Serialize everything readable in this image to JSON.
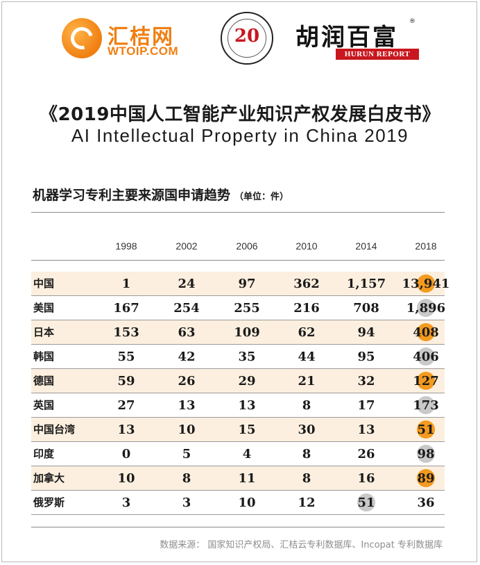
{
  "logos": {
    "wtoip_cn": "汇桔网",
    "wtoip_en": "WTOIP.COM",
    "seal_mark": "20",
    "hurun_cn": "胡润百富",
    "hurun_reg": "®",
    "hurun_en": "HURUN REPORT"
  },
  "title_cn": "《2019中国人工智能产业知识产权发展白皮书》",
  "title_en": "AI Intellectual Property in China 2019",
  "chart_data": {
    "type": "table",
    "title": "机器学习专利主要来源国申请趋势",
    "unit": "（单位：件）",
    "columns": [
      "1998",
      "2002",
      "2006",
      "2010",
      "2014",
      "2018"
    ],
    "rows": [
      {
        "label": "中国",
        "values": [
          "1",
          "24",
          "97",
          "362",
          "1,157",
          "13,941"
        ],
        "highlight": {
          "col": 5,
          "color": "orange"
        }
      },
      {
        "label": "美国",
        "values": [
          "167",
          "254",
          "255",
          "216",
          "708",
          "1,896"
        ],
        "highlight": {
          "col": 5,
          "color": "gray"
        }
      },
      {
        "label": "日本",
        "values": [
          "153",
          "63",
          "109",
          "62",
          "94",
          "408"
        ],
        "highlight": {
          "col": 5,
          "color": "orange"
        }
      },
      {
        "label": "韩国",
        "values": [
          "55",
          "42",
          "35",
          "44",
          "95",
          "406"
        ],
        "highlight": {
          "col": 5,
          "color": "gray"
        }
      },
      {
        "label": "德国",
        "values": [
          "59",
          "26",
          "29",
          "21",
          "32",
          "127"
        ],
        "highlight": {
          "col": 5,
          "color": "orange"
        }
      },
      {
        "label": "英国",
        "values": [
          "27",
          "13",
          "13",
          "8",
          "17",
          "173"
        ],
        "highlight": {
          "col": 5,
          "color": "gray"
        }
      },
      {
        "label": "中国台湾",
        "values": [
          "13",
          "10",
          "15",
          "30",
          "13",
          "51"
        ],
        "highlight": {
          "col": 5,
          "color": "orange"
        }
      },
      {
        "label": "印度",
        "values": [
          "0",
          "5",
          "4",
          "8",
          "26",
          "98"
        ],
        "highlight": {
          "col": 5,
          "color": "gray"
        }
      },
      {
        "label": "加拿大",
        "values": [
          "10",
          "8",
          "11",
          "8",
          "16",
          "89"
        ],
        "highlight": {
          "col": 5,
          "color": "orange"
        }
      },
      {
        "label": "俄罗斯",
        "values": [
          "3",
          "3",
          "10",
          "12",
          "51",
          "36"
        ],
        "highlight": {
          "col": 4,
          "color": "gray"
        }
      }
    ],
    "shaded_rows": [
      0,
      2,
      4,
      6,
      8
    ]
  },
  "source": "数据来源： 国家知识产权局、汇桔云专利数据库、Incopat 专利数据库",
  "colors": {
    "orange": "#f39a1f",
    "gray": "#c9c9c9",
    "row_shade": "#fcefdf",
    "brand_orange": "#f07f12",
    "brand_red": "#c8171e"
  }
}
